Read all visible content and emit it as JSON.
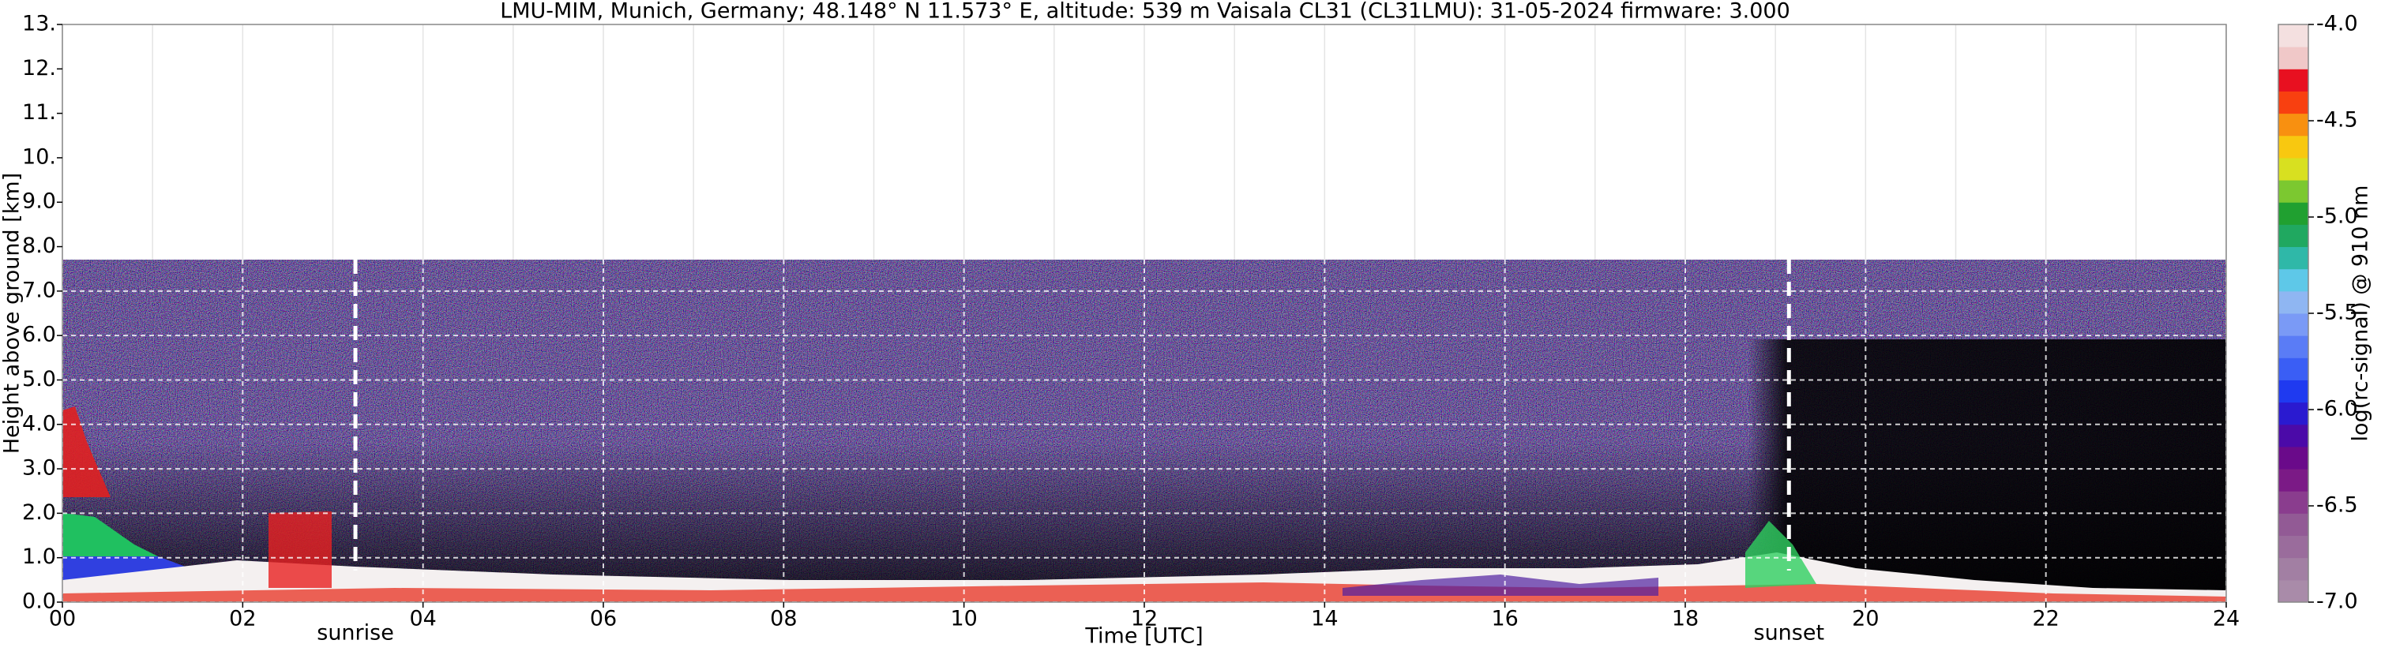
{
  "chart_data": {
    "type": "heatmap",
    "title": "LMU-MIM, Munich, Germany; 48.148° N 11.573° E, altitude: 539 m    Vaisala CL31 (CL31LMU): 31-05-2024    firmware: 3.000",
    "xlabel": "Time [UTC]",
    "ylabel": "Height above ground [km]",
    "xlim": [
      0,
      24
    ],
    "xticks": [
      {
        "value": 0,
        "label": "00"
      },
      {
        "value": 2,
        "label": "02"
      },
      {
        "value": 4,
        "label": "04"
      },
      {
        "value": 6,
        "label": "06"
      },
      {
        "value": 8,
        "label": "08"
      },
      10,
      12,
      14,
      16,
      18,
      20,
      22,
      24
    ],
    "ylim": [
      0,
      13
    ],
    "yticks": [
      {
        "value": 0,
        "label": "0.0"
      },
      {
        "value": 1,
        "label": "1.0"
      },
      {
        "value": 2,
        "label": "2.0"
      },
      {
        "value": 3,
        "label": "3.0"
      },
      {
        "value": 4,
        "label": "4.0"
      },
      {
        "value": 5,
        "label": "5.0"
      },
      {
        "value": 6,
        "label": "6.0"
      },
      {
        "value": 7,
        "label": "7.0"
      },
      {
        "value": 8,
        "label": "8.0"
      },
      {
        "value": 9,
        "label": "9.0"
      },
      {
        "value": 10,
        "label": "10."
      },
      {
        "value": 11,
        "label": "11."
      },
      {
        "value": 12,
        "label": "12."
      },
      {
        "value": 13,
        "label": "13."
      }
    ],
    "grid": true,
    "annotations": [
      {
        "label": "sunrise",
        "x": 3.25
      },
      {
        "label": "sunset",
        "x": 19.15
      }
    ],
    "colorbar": {
      "label": "log(rc-signal) @ 910 nm",
      "clim": [
        -7,
        -4
      ],
      "ticks": [
        {
          "value": -7,
          "label": "-7.0"
        },
        {
          "value": -6.5,
          "label": "-6.5"
        },
        {
          "value": -6,
          "label": "-6.0"
        },
        {
          "value": -5.5,
          "label": "-5.5"
        },
        {
          "value": -5,
          "label": "-5.0"
        },
        {
          "value": -4.5,
          "label": "-4.5"
        },
        {
          "value": -4,
          "label": "-4.0"
        }
      ],
      "colors": [
        "#a98ba9",
        "#a27fa3",
        "#9a6c9c",
        "#925a95",
        "#8a3d8e",
        "#7b1a86",
        "#6a0a8a",
        "#4b0aa8",
        "#2a1ad0",
        "#1f3af0",
        "#3a5ef5",
        "#5a7cf6",
        "#7a9af6",
        "#8fb6f2",
        "#5ec8e8",
        "#2fb8a8",
        "#20a860",
        "#20a030",
        "#7cc830",
        "#d8e020",
        "#f8c810",
        "#f89010",
        "#f84010",
        "#e81020",
        "#f0c8c8",
        "#f4e0e0"
      ]
    }
  }
}
